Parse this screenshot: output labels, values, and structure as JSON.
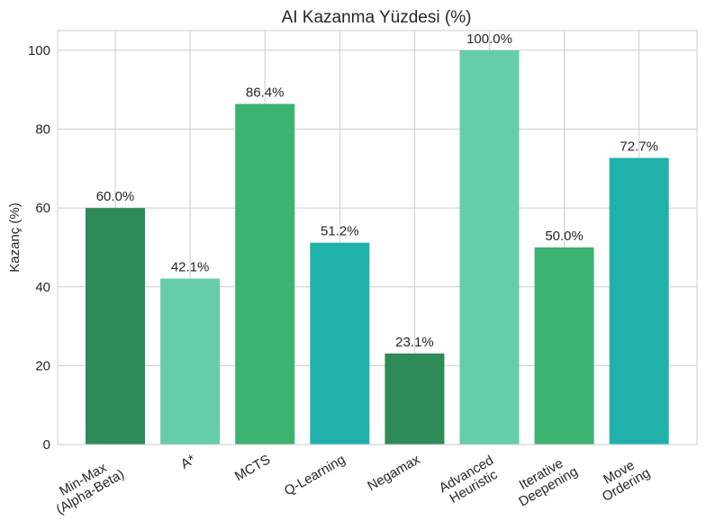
{
  "chart_data": {
    "type": "bar",
    "title": "AI Kazanma Yüzdesi (%)",
    "xlabel": "",
    "ylabel": "Kazanç (%)",
    "ylim": [
      0,
      105
    ],
    "yticks": [
      0,
      20,
      40,
      60,
      80,
      100
    ],
    "grid": true,
    "categories": [
      [
        "Min-Max",
        "(Alpha-Beta)"
      ],
      [
        "A*"
      ],
      [
        "MCTS"
      ],
      [
        "Q-Learning"
      ],
      [
        "Negamax"
      ],
      [
        "Advanced",
        "Heuristic"
      ],
      [
        "Iterative",
        "Deepening"
      ],
      [
        "Move",
        "Ordering"
      ]
    ],
    "values": [
      60.0,
      42.1,
      86.4,
      51.2,
      23.1,
      100.0,
      50.0,
      72.7
    ],
    "value_labels": [
      "60.0%",
      "42.1%",
      "86.4%",
      "51.2%",
      "23.1%",
      "100.0%",
      "50.0%",
      "72.7%"
    ],
    "colors": [
      "#2e8b57",
      "#66cdaa",
      "#3cb371",
      "#20b2aa",
      "#2e8b57",
      "#66cdaa",
      "#3cb371",
      "#20b2aa"
    ],
    "grid_color": "#cccccc",
    "frame_color": "#cccccc"
  }
}
